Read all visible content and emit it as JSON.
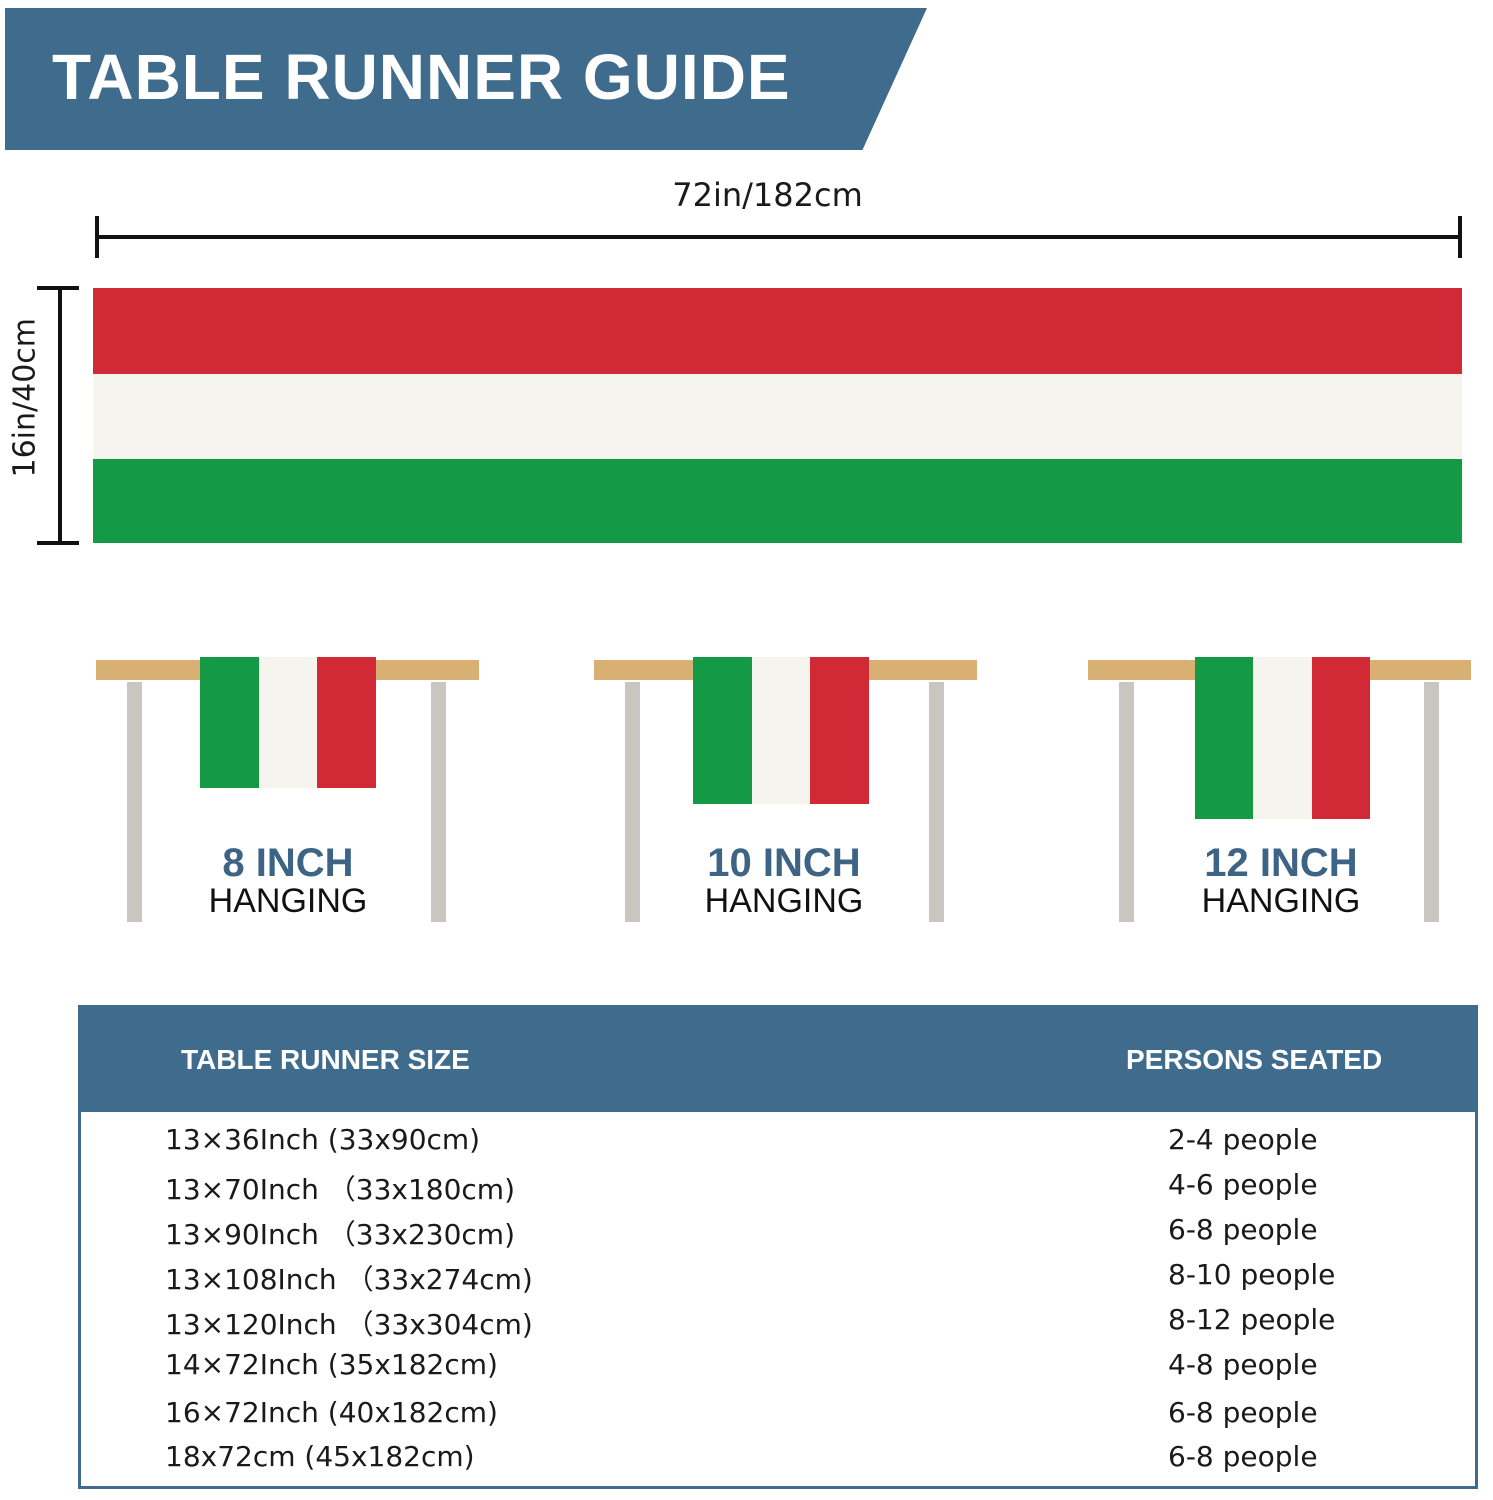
{
  "header": {
    "title": "TABLE RUNNER GUIDE"
  },
  "dimensions": {
    "width": "72in/182cm",
    "height": "16in/40cm"
  },
  "colors": {
    "banner": "#3f6c8c",
    "flag_red": "#d12a36",
    "flag_white": "#f6f4ef",
    "flag_green": "#149a45",
    "caption_blue": "#3d6484"
  },
  "hanging": [
    {
      "size": "8 INCH",
      "label": "HANGING"
    },
    {
      "size": "10 INCH",
      "label": "HANGING"
    },
    {
      "size": "12 INCH",
      "label": "HANGING"
    }
  ],
  "size_table": {
    "headers": [
      "TABLE RUNNER SIZE",
      "PERSONS SEATED"
    ],
    "rows": [
      [
        "13×36Inch (33x90cm)",
        "2-4 people"
      ],
      [
        "13×70Inch （33x180cm)",
        "4-6 people"
      ],
      [
        "13×90Inch （33x230cm)",
        "6-8 people"
      ],
      [
        "13×108Inch （33x274cm)",
        "8-10 people"
      ],
      [
        "13×120Inch （33x304cm)",
        "8-12 people"
      ],
      [
        "14×72Inch (35x182cm)",
        "4-8 people"
      ],
      [
        "16×72Inch (40x182cm)",
        "6-8 people"
      ],
      [
        "18x72cm (45x182cm)",
        "6-8 people"
      ]
    ]
  }
}
